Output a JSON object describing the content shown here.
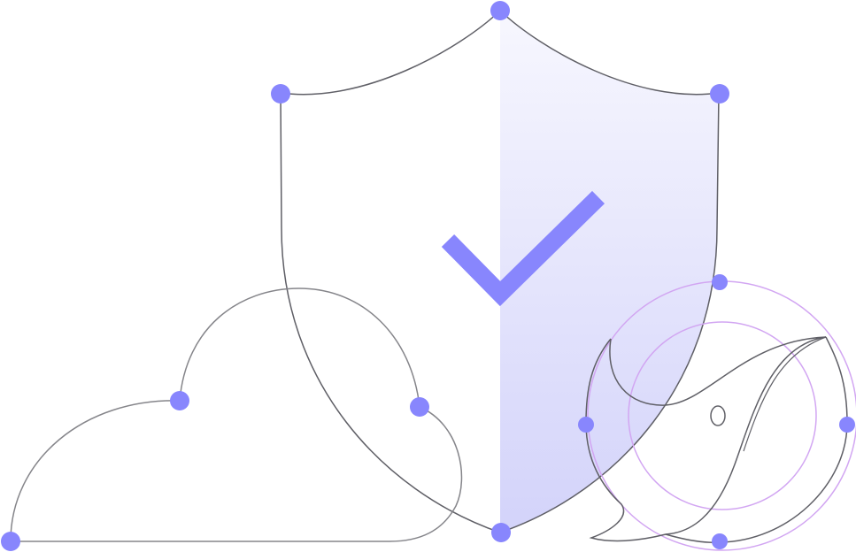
{
  "colors": {
    "accent": "#8886fd",
    "stroke_dark": "#5f5f66",
    "stroke_gray": "#85858a",
    "ring": "#d2a6f2",
    "shield_gradient_top": "#f7f7fe",
    "shield_gradient_bottom": "#d3d3fa"
  },
  "icons": {
    "shield": "shield-icon",
    "checkmark": "checkmark-icon",
    "cloud": "cloud-icon",
    "speech_bubble": "speech-bubble-icon",
    "ring": "ring-icon"
  }
}
